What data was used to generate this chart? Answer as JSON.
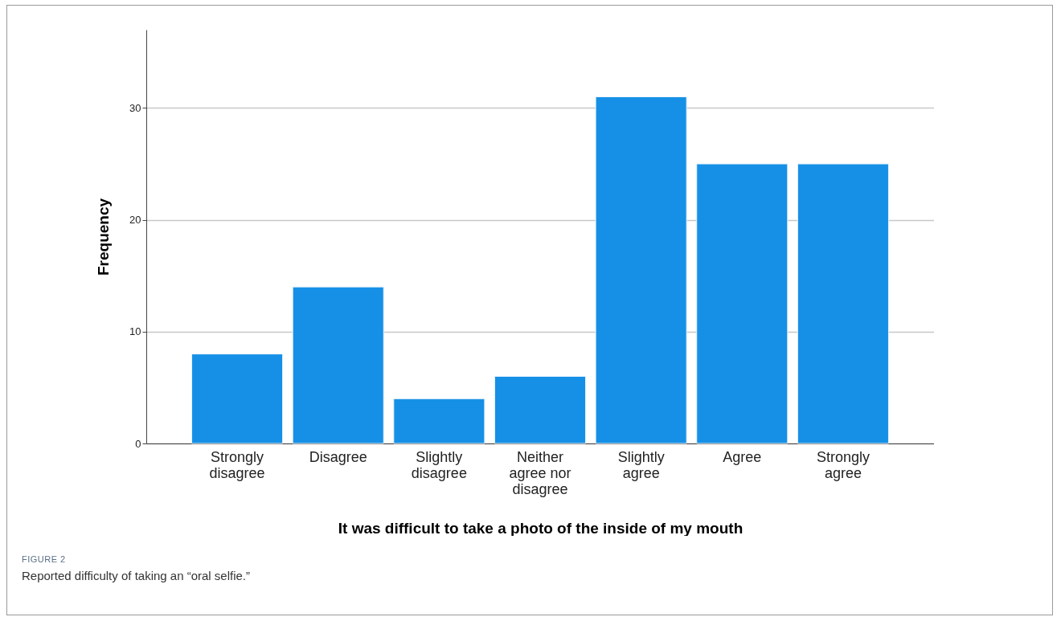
{
  "chart_data": {
    "type": "bar",
    "xlabel": "It was difficult to take a photo of the inside of my mouth",
    "ylabel": "Frequency",
    "categories": [
      "Strongly disagree",
      "Disagree",
      "Slightly disagree",
      "Neither agree nor disagree",
      "Slightly agree",
      "Agree",
      "Strongly agree"
    ],
    "values": [
      8,
      14,
      4,
      6,
      31,
      25,
      25
    ],
    "color": "#1690e6",
    "ylim": [
      0,
      37
    ],
    "yticks": [
      0,
      10,
      20,
      30
    ],
    "grid": "y",
    "annotations": [
      "FIGURE 2",
      "Reported difficulty of taking an “oral selfie.”"
    ]
  }
}
